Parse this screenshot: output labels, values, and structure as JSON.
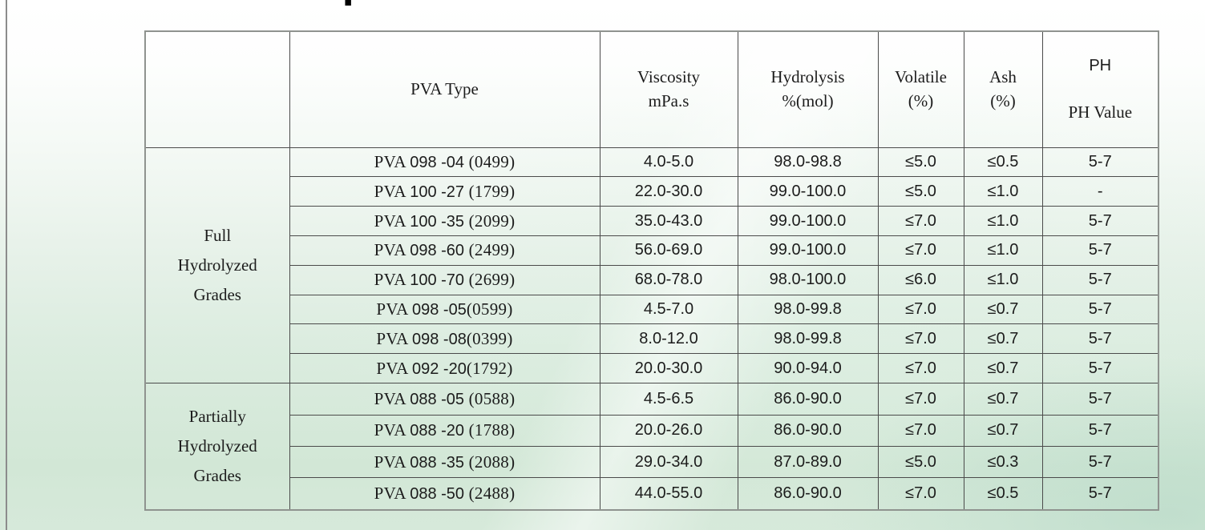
{
  "page": {
    "background_top": "#ffffff",
    "background_bottom": "#d2e7d6",
    "left_rule_color": "#8c8c8c",
    "table_outer_border_color": "#8f938f",
    "table_grid_color": "#4b4b4b",
    "text_color": "#1c1c1c",
    "cropped_title_dot": "▪"
  },
  "table": {
    "headers": {
      "group": "",
      "pva_type": "PVA Type",
      "viscosity": "Viscosity\nmPa.s",
      "hydrolysis": "Hydrolysis\n%(mol)",
      "volatile": "Volatile\n(%)",
      "ash": "Ash\n(%)",
      "ph_line1": "PH",
      "ph_line2": "PH Value"
    },
    "groups": [
      {
        "label": "Full\nHydrolyzed\nGrades",
        "rows": [
          {
            "type": "PVA 098 -04 (0499)",
            "viscosity": "4.0-5.0",
            "hydrolysis": "98.0-98.8",
            "volatile": "≤5.0",
            "ash": "≤0.5",
            "ph": "5-7"
          },
          {
            "type": "PVA 100 -27 (1799)",
            "viscosity": "22.0-30.0",
            "hydrolysis": "99.0-100.0",
            "volatile": "≤5.0",
            "ash": "≤1.0",
            "ph": "-"
          },
          {
            "type": "PVA 100 -35 (2099)",
            "viscosity": "35.0-43.0",
            "hydrolysis": "99.0-100.0",
            "volatile": "≤7.0",
            "ash": "≤1.0",
            "ph": "5-7"
          },
          {
            "type": "PVA 098 -60 (2499)",
            "viscosity": "56.0-69.0",
            "hydrolysis": "99.0-100.0",
            "volatile": "≤7.0",
            "ash": "≤1.0",
            "ph": "5-7"
          },
          {
            "type": "PVA 100 -70 (2699)",
            "viscosity": "68.0-78.0",
            "hydrolysis": "98.0-100.0",
            "volatile": "≤6.0",
            "ash": "≤1.0",
            "ph": "5-7"
          },
          {
            "type": "PVA 098 -05(0599)",
            "viscosity": "4.5-7.0",
            "hydrolysis": "98.0-99.8",
            "volatile": "≤7.0",
            "ash": "≤0.7",
            "ph": "5-7"
          },
          {
            "type": "PVA 098 -08(0399)",
            "viscosity": "8.0-12.0",
            "hydrolysis": "98.0-99.8",
            "volatile": "≤7.0",
            "ash": "≤0.7",
            "ph": "5-7"
          },
          {
            "type": "PVA 092 -20(1792)",
            "viscosity": "20.0-30.0",
            "hydrolysis": "90.0-94.0",
            "volatile": "≤7.0",
            "ash": "≤0.7",
            "ph": "5-7"
          }
        ]
      },
      {
        "label": "Partially\nHydrolyzed\nGrades",
        "rows": [
          {
            "type": "PVA 088 -05 (0588)",
            "viscosity": "4.5-6.5",
            "hydrolysis": "86.0-90.0",
            "volatile": "≤7.0",
            "ash": "≤0.7",
            "ph": "5-7"
          },
          {
            "type": "PVA 088 -20 (1788)",
            "viscosity": "20.0-26.0",
            "hydrolysis": "86.0-90.0",
            "volatile": "≤7.0",
            "ash": "≤0.7",
            "ph": "5-7"
          },
          {
            "type": "PVA 088 -35 (2088)",
            "viscosity": "29.0-34.0",
            "hydrolysis": "87.0-89.0",
            "volatile": "≤5.0",
            "ash": "≤0.3",
            "ph": "5-7"
          },
          {
            "type": "PVA 088 -50 (2488)",
            "viscosity": "44.0-55.0",
            "hydrolysis": "86.0-90.0",
            "volatile": "≤7.0",
            "ash": "≤0.5",
            "ph": "5-7"
          }
        ]
      }
    ]
  }
}
